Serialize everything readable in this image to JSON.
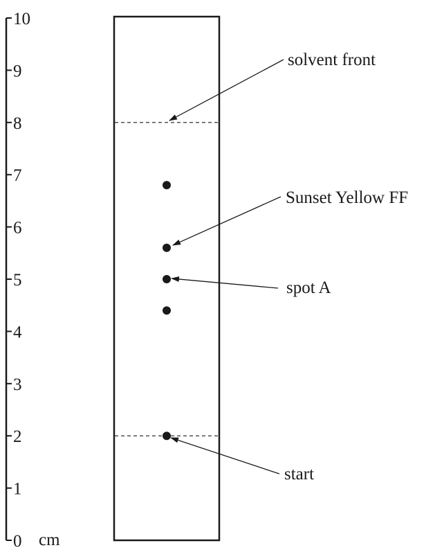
{
  "scale": {
    "unit": "cm",
    "ticks": [
      {
        "value": 0,
        "label": "0"
      },
      {
        "value": 1,
        "label": "1"
      },
      {
        "value": 2,
        "label": "2"
      },
      {
        "value": 3,
        "label": "3"
      },
      {
        "value": 4,
        "label": "4"
      },
      {
        "value": 5,
        "label": "5"
      },
      {
        "value": 6,
        "label": "6"
      },
      {
        "value": 7,
        "label": "7"
      },
      {
        "value": 8,
        "label": "8"
      },
      {
        "value": 9,
        "label": "9"
      },
      {
        "value": 10,
        "label": "10"
      }
    ]
  },
  "plate": {
    "start_line_cm": 2,
    "solvent_front_cm": 8,
    "spots_cm": [
      6.8,
      5.6,
      5.0,
      4.4,
      2.0
    ]
  },
  "callouts": [
    {
      "id": "solvent-front",
      "text": "solvent front",
      "target_cm": 8.0
    },
    {
      "id": "sunset-yellow",
      "text": "Sunset Yellow FF",
      "target_cm": 5.6
    },
    {
      "id": "spot-a",
      "text": "spot A",
      "target_cm": 5.0
    },
    {
      "id": "start",
      "text": "start",
      "target_cm": 2.0
    }
  ],
  "colors": {
    "ink": "#1a1a1a",
    "background": "#ffffff"
  }
}
